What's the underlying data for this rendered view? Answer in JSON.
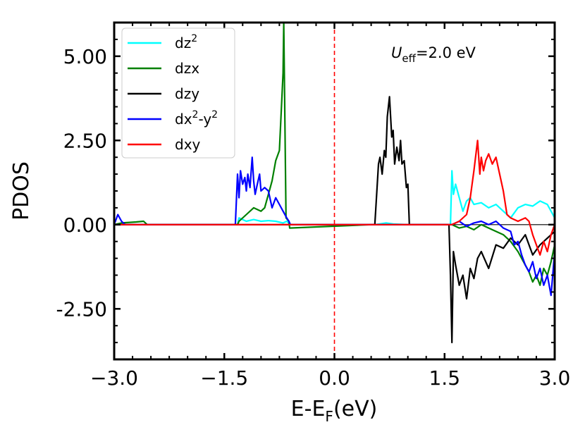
{
  "chart_data": {
    "type": "line",
    "xlabel_main": "E-E",
    "xlabel_sub": "F",
    "xlabel_unit": "(eV)",
    "ylabel": "PDOS",
    "xlim": [
      -3.0,
      3.0
    ],
    "ylim": [
      -4.0,
      6.0
    ],
    "xticks": [
      -3.0,
      -1.5,
      0.0,
      1.5,
      3.0
    ],
    "xtick_labels": [
      "−3.0",
      "−1.5",
      "0.0",
      "1.5",
      "3.0"
    ],
    "yticks": [
      -2.5,
      0.0,
      2.5,
      5.0
    ],
    "ytick_labels": [
      "-2.50",
      "0.00",
      "2.50",
      "5.00"
    ],
    "fermi_level": 0.0,
    "annotation": {
      "symbol": "U",
      "sub": "eff",
      "rest": "=2.0 eV"
    },
    "legend_position": "top-left",
    "series": [
      {
        "name": "dz²",
        "label_main": "dz",
        "label_sup": "2",
        "label_rest": "",
        "label_sup2": "",
        "color": "#00ffff",
        "x": [
          -3.0,
          -2.6,
          -2.5,
          -1.32,
          -1.3,
          -1.2,
          -1.1,
          -1.0,
          -0.9,
          -0.8,
          -0.7,
          -0.65,
          -0.6,
          0.55,
          0.7,
          0.8,
          1.0,
          1.58,
          1.6,
          1.62,
          1.65,
          1.7,
          1.75,
          1.8,
          1.85,
          1.9,
          2.0,
          2.1,
          2.2,
          2.3,
          2.4,
          2.5,
          2.6,
          2.7,
          2.8,
          2.9,
          3.0
        ],
        "y": [
          0,
          0,
          0,
          0,
          0.2,
          0.1,
          0.15,
          0.1,
          0.12,
          0.1,
          0.05,
          0.1,
          0,
          0,
          0.05,
          0.02,
          0,
          0,
          1.6,
          0.9,
          1.2,
          0.8,
          0.4,
          0.7,
          0.8,
          0.6,
          0.65,
          0.5,
          0.6,
          0.4,
          0.2,
          0.5,
          0.6,
          0.55,
          0.7,
          0.6,
          0.2
        ]
      },
      {
        "name": "dzx",
        "label_main": "dzx",
        "label_sup": "",
        "label_rest": "",
        "label_sup2": "",
        "color": "#008000",
        "x": [
          -3.0,
          -2.9,
          -2.7,
          -2.6,
          -2.55,
          -1.32,
          -1.3,
          -1.2,
          -1.1,
          -1.0,
          -0.95,
          -0.9,
          -0.85,
          -0.8,
          -0.75,
          -0.7,
          -0.69,
          -0.66,
          -0.62,
          -0.61,
          0.5,
          1.6,
          1.7,
          1.8,
          1.9,
          2.0,
          2.1,
          2.2,
          2.3,
          2.4,
          2.5,
          2.55,
          2.6,
          2.65,
          2.7,
          2.75,
          2.8,
          2.85,
          2.9,
          2.95,
          3.0
        ],
        "y": [
          0,
          0.05,
          0.08,
          0.1,
          0,
          0,
          0.1,
          0.3,
          0.5,
          0.4,
          0.5,
          0.9,
          1.3,
          1.9,
          2.2,
          4.5,
          6.0,
          0.2,
          0.1,
          -0.1,
          0,
          0,
          -0.1,
          -0.05,
          -0.15,
          0,
          -0.1,
          -0.2,
          -0.3,
          -0.5,
          -0.8,
          -1.0,
          -1.2,
          -1.4,
          -1.7,
          -1.5,
          -1.8,
          -1.3,
          -1.5,
          -1.1,
          -0.6
        ]
      },
      {
        "name": "dzy",
        "label_main": "dzy",
        "label_sup": "",
        "label_rest": "",
        "label_sup2": "",
        "color": "#000000",
        "x": [
          -3.0,
          0.5,
          0.55,
          0.6,
          0.62,
          0.65,
          0.68,
          0.7,
          0.72,
          0.75,
          0.78,
          0.8,
          0.82,
          0.85,
          0.88,
          0.9,
          0.92,
          0.95,
          0.98,
          1.0,
          1.02,
          1.03,
          1.5,
          1.56,
          1.58,
          1.6,
          1.62,
          1.65,
          1.7,
          1.75,
          1.8,
          1.85,
          1.9,
          1.95,
          2.0,
          2.1,
          2.2,
          2.3,
          2.4,
          2.5,
          2.6,
          2.7,
          2.8,
          2.9,
          3.0
        ],
        "y": [
          0,
          0,
          0,
          1.8,
          2.0,
          1.5,
          2.2,
          2.0,
          3.2,
          3.8,
          2.6,
          2.8,
          1.8,
          2.3,
          1.9,
          2.5,
          1.8,
          1.9,
          1.1,
          1.2,
          0,
          0,
          0,
          0,
          -1.5,
          -3.5,
          -0.8,
          -1.2,
          -1.8,
          -1.5,
          -2.2,
          -1.3,
          -1.6,
          -1.0,
          -0.8,
          -1.3,
          -0.6,
          -0.7,
          -0.4,
          -0.6,
          -0.3,
          -0.9,
          -0.6,
          -0.4,
          -0.2
        ]
      },
      {
        "name": "dx²-y²",
        "label_main": "dx",
        "label_sup": "2",
        "label_rest": "-y",
        "label_sup2": "2",
        "color": "#0000ff",
        "x": [
          -3.0,
          -2.95,
          -2.9,
          -2.85,
          -1.35,
          -1.32,
          -1.3,
          -1.28,
          -1.25,
          -1.22,
          -1.2,
          -1.18,
          -1.15,
          -1.12,
          -1.1,
          -1.08,
          -1.05,
          -1.02,
          -1.0,
          -0.95,
          -0.9,
          -0.85,
          -0.8,
          -0.75,
          -0.7,
          -0.65,
          -0.62,
          -0.6,
          0.5,
          1.6,
          1.7,
          1.8,
          1.9,
          2.0,
          2.1,
          2.2,
          2.3,
          2.4,
          2.45,
          2.5,
          2.55,
          2.6,
          2.65,
          2.7,
          2.75,
          2.8,
          2.85,
          2.9,
          2.95,
          3.0
        ],
        "y": [
          0,
          0.3,
          0.1,
          0,
          0,
          1.5,
          0.8,
          1.6,
          1.2,
          1.4,
          1.0,
          1.5,
          1.1,
          2.0,
          1.3,
          0.9,
          1.2,
          1.5,
          1.0,
          1.1,
          1.0,
          0.5,
          0.8,
          0.6,
          0.4,
          0.2,
          0.1,
          0,
          0,
          0,
          0.1,
          -0.05,
          0.05,
          0.1,
          0,
          0.1,
          -0.1,
          -0.2,
          -0.6,
          -0.5,
          -0.9,
          -1.2,
          -1.4,
          -1.1,
          -1.6,
          -1.3,
          -1.8,
          -1.5,
          -2.1,
          -0.8
        ]
      },
      {
        "name": "dxy",
        "label_main": "dxy",
        "label_sup": "",
        "label_rest": "",
        "label_sup2": "",
        "color": "#ff0000",
        "x": [
          -3.0,
          1.6,
          1.7,
          1.8,
          1.85,
          1.9,
          1.95,
          1.98,
          2.0,
          2.03,
          2.06,
          2.1,
          2.15,
          2.2,
          2.25,
          2.3,
          2.35,
          2.4,
          2.5,
          2.6,
          2.65,
          2.7,
          2.75,
          2.8,
          2.85,
          2.9,
          2.95,
          3.0
        ],
        "y": [
          0,
          0,
          0.1,
          0.3,
          0.8,
          1.6,
          2.5,
          1.5,
          2.0,
          1.6,
          1.9,
          2.1,
          1.8,
          2.0,
          1.5,
          1.0,
          0.3,
          0.2,
          0.1,
          0.2,
          0.1,
          -0.3,
          -0.6,
          -0.9,
          -0.5,
          -0.8,
          -0.3,
          0
        ]
      }
    ]
  }
}
